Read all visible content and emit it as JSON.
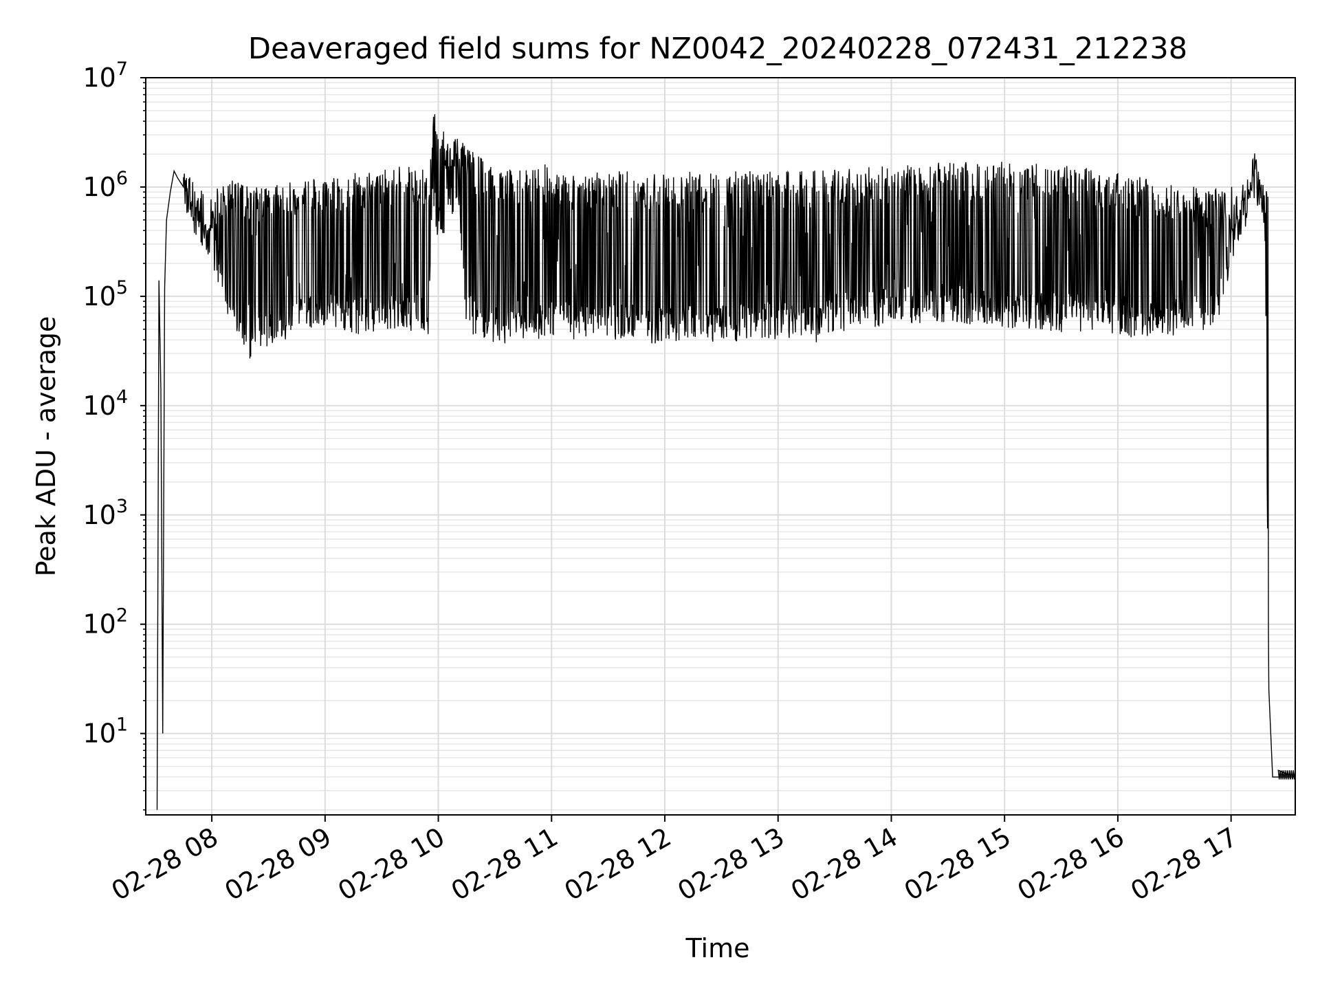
{
  "chart_data": {
    "type": "line",
    "title": "Deaveraged field sums for NZ0042_20240228_072431_212238",
    "xlabel": "Time",
    "ylabel": "Peak ADU - average",
    "yscale": "log",
    "xlim": [
      "2024-02-28 07:25",
      "2024-02-28 17:34"
    ],
    "ylim": [
      1.8,
      10000000
    ],
    "grid": true,
    "grid_minor": true,
    "line_color": "#000000",
    "x_tick_labels": [
      "02-28 08",
      "02-28 09",
      "02-28 10",
      "02-28 11",
      "02-28 12",
      "02-28 13",
      "02-28 14",
      "02-28 15",
      "02-28 16",
      "02-28 17"
    ],
    "x_tick_values": [
      "2024-02-28 08:00",
      "2024-02-28 09:00",
      "2024-02-28 10:00",
      "2024-02-28 11:00",
      "2024-02-28 12:00",
      "2024-02-28 13:00",
      "2024-02-28 14:00",
      "2024-02-28 15:00",
      "2024-02-28 16:00",
      "2024-02-28 17:00"
    ],
    "y_tick_labels": [
      {
        "base": "10",
        "exp": "1",
        "value": 10
      },
      {
        "base": "10",
        "exp": "2",
        "value": 100
      },
      {
        "base": "10",
        "exp": "3",
        "value": 1000
      },
      {
        "base": "10",
        "exp": "4",
        "value": 10000
      },
      {
        "base": "10",
        "exp": "5",
        "value": 100000
      },
      {
        "base": "10",
        "exp": "6",
        "value": 1000000
      },
      {
        "base": "10",
        "exp": "7",
        "value": 10000000
      }
    ],
    "series": [
      {
        "x": [
          "07:31",
          "07:32",
          "07:33",
          "07:34",
          "07:35",
          "07:36",
          "07:38",
          "07:40",
          "07:42",
          "07:45",
          "07:48",
          "07:50",
          "07:55",
          "08:00",
          "08:05",
          "08:10",
          "08:15",
          "08:20",
          "08:25",
          "08:30",
          "08:40",
          "08:50",
          "09:00",
          "09:10",
          "09:20",
          "09:30",
          "09:40",
          "09:50",
          "09:55",
          "09:57",
          "10:00",
          "10:05",
          "10:10",
          "10:15",
          "10:20",
          "10:30",
          "10:40",
          "10:50",
          "11:00",
          "11:10",
          "11:20",
          "11:30",
          "11:40",
          "11:50",
          "12:00",
          "12:15",
          "12:30",
          "12:45",
          "13:00",
          "13:10",
          "13:20",
          "13:30",
          "13:45",
          "14:00",
          "14:15",
          "14:30",
          "14:45",
          "15:00",
          "15:15",
          "15:30",
          "15:45",
          "16:00",
          "16:15",
          "16:30",
          "16:45",
          "16:55",
          "17:00",
          "17:05",
          "17:10",
          "17:13",
          "17:15",
          "17:18",
          "17:20",
          "17:22",
          "17:25",
          "17:34"
        ],
        "y": [
          2,
          140000,
          14000,
          10,
          120000,
          500000,
          900000,
          1400000,
          1200000,
          1000000,
          700000,
          500000,
          400000,
          300000,
          150000,
          80000,
          60000,
          40000,
          45000,
          50000,
          60000,
          70000,
          80000,
          70000,
          65000,
          70000,
          75000,
          70000,
          65000,
          900000,
          400000,
          700000,
          900000,
          80000,
          60000,
          55000,
          55000,
          60000,
          60000,
          60000,
          55000,
          55000,
          60000,
          55000,
          55000,
          55000,
          55000,
          60000,
          60000,
          55000,
          55000,
          70000,
          75000,
          80000,
          85000,
          85000,
          80000,
          75000,
          75000,
          70000,
          70000,
          65000,
          60000,
          65000,
          70000,
          100000,
          300000,
          500000,
          800000,
          1100000,
          900000,
          400000,
          35,
          4,
          4,
          4
        ]
      },
      {
        "x": [
          "07:33",
          "07:38",
          "07:40",
          "07:45",
          "07:50",
          "07:55",
          "08:00",
          "08:10",
          "08:20",
          "08:30",
          "08:45",
          "09:00",
          "09:15",
          "09:30",
          "09:45",
          "09:55",
          "09:58",
          "10:05",
          "10:10",
          "10:15",
          "10:30",
          "10:45",
          "10:55",
          "11:00",
          "11:15",
          "11:30",
          "11:45",
          "12:00",
          "12:15",
          "12:30",
          "12:45",
          "13:00",
          "13:15",
          "13:30",
          "13:45",
          "14:00",
          "14:15",
          "14:30",
          "14:45",
          "15:00",
          "15:15",
          "15:30",
          "15:45",
          "16:00",
          "16:15",
          "16:30",
          "16:45",
          "17:00",
          "17:10",
          "17:12",
          "17:15",
          "17:20"
        ],
        "y": [
          140000,
          800000,
          1500000,
          1400000,
          1200000,
          1000000,
          900000,
          1200000,
          1000000,
          1000000,
          1200000,
          1300000,
          1400000,
          1500000,
          1600000,
          1550000,
          6000000,
          3000000,
          3000000,
          2500000,
          1400000,
          1500000,
          1800000,
          1300000,
          1300000,
          1400000,
          1400000,
          1400000,
          1400000,
          1400000,
          1400000,
          1400000,
          1400000,
          1500000,
          1500000,
          1600000,
          1650000,
          1700000,
          1700000,
          1700000,
          1650000,
          1600000,
          1500000,
          1400000,
          1200000,
          1100000,
          1000000,
          1000000,
          1200000,
          3000000,
          1200000,
          900000
        ]
      }
    ]
  }
}
